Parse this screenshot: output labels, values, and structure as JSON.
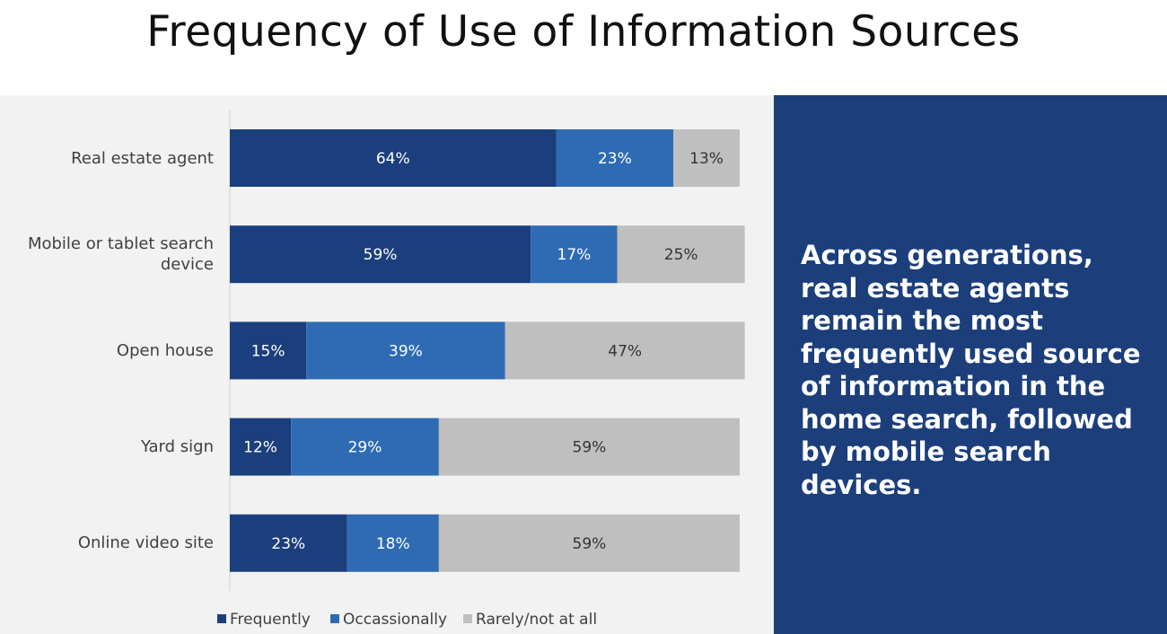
{
  "chart_data": {
    "type": "stacked-bar-horizontal",
    "title": "Frequency of Use of Information Sources",
    "categories": [
      "Real estate agent",
      "Mobile or tablet search device",
      "Open house",
      "Yard sign",
      "Online video site"
    ],
    "series": [
      {
        "name": "Frequently",
        "color": "#1b3f7c",
        "label_color": "#ffffff",
        "values": [
          64,
          59,
          15,
          12,
          23
        ],
        "value_labels": [
          "64%",
          "59%",
          "15%",
          "12%",
          "23%"
        ]
      },
      {
        "name": "Occassionally",
        "color": "#2e6bb3",
        "label_color": "#ffffff",
        "values": [
          23,
          17,
          39,
          29,
          18
        ],
        "value_labels": [
          "23%",
          "17%",
          "39%",
          "29%",
          "18%"
        ]
      },
      {
        "name": "Rarely/not at all",
        "color": "#bfbfbf",
        "label_color": "#333333",
        "values": [
          13,
          25,
          47,
          59,
          59
        ],
        "value_labels": [
          "13%",
          "25%",
          "47%",
          "59%",
          "59%"
        ]
      }
    ],
    "xlim": [
      0,
      100
    ],
    "legend": "bottom",
    "annotation": "Across generations, real estate agents remain the most frequently used source of information in the home search, followed by mobile search devices."
  }
}
